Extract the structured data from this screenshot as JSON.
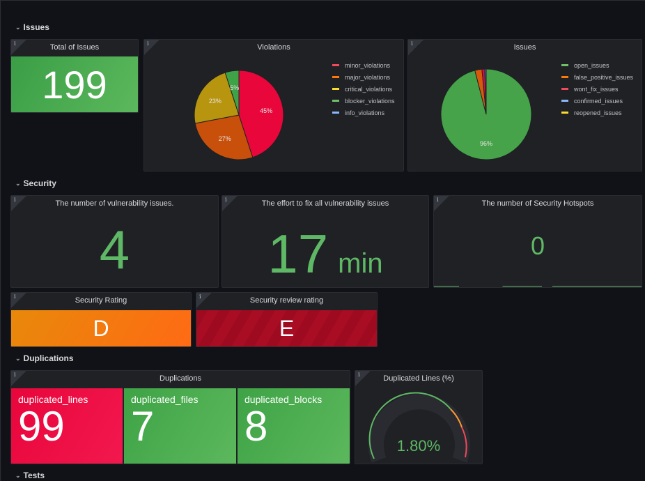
{
  "rows": {
    "issues": "Issues",
    "security": "Security",
    "duplications": "Duplications",
    "tests": "Tests"
  },
  "info_icon": "i",
  "total_issues": {
    "title": "Total of Issues",
    "value": "199",
    "color": "#56a64b"
  },
  "chart_data": [
    {
      "type": "pie",
      "title": "Violations",
      "labels": [
        "minor_violations",
        "major_violations",
        "critical_violations",
        "blocker_violations",
        "info_violations"
      ],
      "values": [
        45,
        27,
        23,
        5,
        0
      ],
      "slice_labels": [
        "45%",
        "27%",
        "23%",
        "5%",
        ""
      ],
      "colors": [
        "#e8063b",
        "#c8500a",
        "#b8950f",
        "#3ea346",
        "#8ab8ff"
      ],
      "legend_colors": [
        "#f2495c",
        "#ff780a",
        "#fade2a",
        "#73bf69",
        "#8ab8ff"
      ],
      "legend": "right"
    },
    {
      "type": "pie",
      "title": "Issues",
      "labels": [
        "open_issues",
        "false_positive_issues",
        "wont_fix_issues",
        "confirmed_issues",
        "reopened_issues"
      ],
      "values": [
        191,
        5,
        2,
        1,
        0
      ],
      "slice_labels": [
        "96%",
        "",
        "",
        "",
        ""
      ],
      "colors": [
        "#46a34a",
        "#d75a0a",
        "#e8063b",
        "#3274d9",
        "#fade2a"
      ],
      "legend_colors": [
        "#73bf69",
        "#ff780a",
        "#f2495c",
        "#8ab8ff",
        "#fade2a"
      ],
      "legend": "right"
    }
  ],
  "security": {
    "vuln": {
      "title": "The number of vulnerability issues.",
      "value": "4"
    },
    "effort": {
      "title": "The effort to fix all vulnerability issues",
      "value": "17",
      "unit": "min"
    },
    "hotspots": {
      "title": "The number of Security Hotspots",
      "value": "0"
    },
    "rating": {
      "title": "Security Rating",
      "value": "D"
    },
    "review": {
      "title": "Security review rating",
      "value": "E"
    }
  },
  "duplications": {
    "title": "Duplications",
    "items": [
      {
        "name": "duplicated_lines",
        "value": "99"
      },
      {
        "name": "duplicated_files",
        "value": "7"
      },
      {
        "name": "duplicated_blocks",
        "value": "8"
      }
    ]
  },
  "gauge": {
    "title": "Duplicated Lines (%)",
    "value": "1.80%",
    "percent": 1.8
  }
}
